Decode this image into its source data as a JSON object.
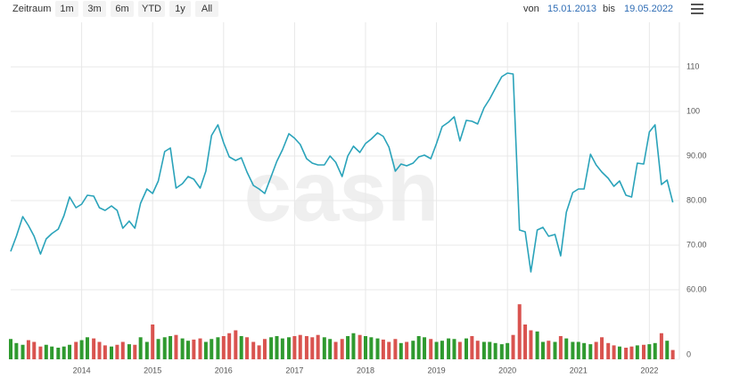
{
  "toolbar": {
    "label": "Zeitraum",
    "buttons": [
      "1m",
      "3m",
      "6m",
      "YTD",
      "1y",
      "All"
    ],
    "from_label": "von",
    "from": "15.01.2013",
    "to_label": "bis",
    "to": "19.05.2022"
  },
  "chart_data": {
    "type": "line",
    "watermark": "cash",
    "grid": true,
    "xlim": [
      2013,
      2022.4
    ],
    "xticks": [
      2014,
      2015,
      2016,
      2017,
      2018,
      2019,
      2020,
      2021,
      2022
    ],
    "ylim": [
      59,
      119
    ],
    "yticks": [
      {
        "value": 60,
        "label": "60.00"
      },
      {
        "value": 70,
        "label": "70.00"
      },
      {
        "value": 80,
        "label": "80.00"
      },
      {
        "value": 90,
        "label": "90.00"
      },
      100,
      110
    ],
    "y2lim": [
      0,
      100
    ],
    "y2ticks": [
      0
    ],
    "x": [
      2013,
      2013.08,
      2013.17,
      2013.25,
      2013.33,
      2013.42,
      2013.5,
      2013.58,
      2013.67,
      2013.75,
      2013.83,
      2013.92,
      2014,
      2014.08,
      2014.17,
      2014.25,
      2014.33,
      2014.42,
      2014.5,
      2014.58,
      2014.67,
      2014.75,
      2014.83,
      2014.92,
      2015,
      2015.08,
      2015.17,
      2015.25,
      2015.33,
      2015.42,
      2015.5,
      2015.58,
      2015.67,
      2015.75,
      2015.83,
      2015.92,
      2016,
      2016.08,
      2016.17,
      2016.25,
      2016.33,
      2016.42,
      2016.5,
      2016.58,
      2016.67,
      2016.75,
      2016.83,
      2016.92,
      2017,
      2017.08,
      2017.17,
      2017.25,
      2017.33,
      2017.42,
      2017.5,
      2017.58,
      2017.67,
      2017.75,
      2017.83,
      2017.92,
      2018,
      2018.08,
      2018.17,
      2018.25,
      2018.33,
      2018.42,
      2018.5,
      2018.58,
      2018.67,
      2018.75,
      2018.83,
      2018.92,
      2019,
      2019.08,
      2019.17,
      2019.25,
      2019.33,
      2019.42,
      2019.5,
      2019.58,
      2019.67,
      2019.75,
      2019.83,
      2019.92,
      2020,
      2020.08,
      2020.17,
      2020.25,
      2020.33,
      2020.42,
      2020.5,
      2020.58,
      2020.67,
      2020.75,
      2020.83,
      2020.92,
      2021,
      2021.08,
      2021.17,
      2021.25,
      2021.33,
      2021.42,
      2021.5,
      2021.58,
      2021.67,
      2021.75,
      2021.83,
      2021.92,
      2022,
      2022.08,
      2022.17,
      2022.25,
      2022.33
    ],
    "series": [
      {
        "color": "#2aa3ba",
        "values": [
          68.6,
          72,
          76.4,
          74.4,
          72,
          68,
          71.4,
          72.6,
          73.6,
          76.6,
          80.8,
          78.4,
          79.2,
          81.2,
          81,
          78.4,
          77.8,
          78.8,
          77.8,
          73.8,
          75.4,
          73.8,
          79.4,
          82.6,
          81.6,
          84.4,
          91,
          91.8,
          82.8,
          83.8,
          85.4,
          84.8,
          82.8,
          86.6,
          94.6,
          97,
          93,
          89.8,
          89,
          89.6,
          86.4,
          83.4,
          82.6,
          81.6,
          85.4,
          88.8,
          91.4,
          95,
          94,
          92.6,
          89.4,
          88.4,
          88,
          88,
          90,
          88.6,
          85.4,
          90,
          92.2,
          90.8,
          92.8,
          93.8,
          95.2,
          94.4,
          92,
          86.6,
          88.2,
          87.8,
          88.4,
          89.8,
          90.2,
          89.4,
          92.8,
          96.6,
          97.6,
          98.8,
          93.4,
          98,
          97.8,
          97.2,
          100.8,
          102.8,
          105.2,
          107.8,
          108.6,
          108.4,
          73.4,
          73,
          64,
          73.4,
          74,
          72,
          72.4,
          67.6,
          77.4,
          81.8,
          82.6,
          82.6,
          90.4,
          88,
          86.4,
          85,
          83.2,
          84.4,
          81.2,
          80.8,
          88.4,
          88.2,
          95.4,
          97,
          83.6,
          84.6,
          79.6
        ]
      },
      {
        "type": "bar",
        "axis": "y2",
        "up_color": "#2f9a2f",
        "down_color": "#d9534f",
        "values": [
          35,
          28,
          25,
          33,
          30,
          22,
          25,
          22,
          20,
          22,
          25,
          30,
          33,
          38,
          36,
          30,
          24,
          22,
          25,
          30,
          26,
          25,
          38,
          30,
          60,
          35,
          38,
          40,
          42,
          36,
          32,
          34,
          36,
          30,
          35,
          38,
          40,
          45,
          50,
          40,
          38,
          30,
          24,
          35,
          38,
          40,
          36,
          38,
          40,
          42,
          40,
          38,
          42,
          38,
          35,
          30,
          35,
          40,
          45,
          42,
          40,
          38,
          36,
          34,
          30,
          35,
          28,
          30,
          32,
          40,
          38,
          35,
          30,
          32,
          36,
          35,
          30,
          36,
          40,
          32,
          30,
          30,
          28,
          26,
          28,
          42,
          95,
          60,
          50,
          48,
          30,
          32,
          30,
          40,
          36,
          30,
          30,
          28,
          26,
          30,
          38,
          28,
          24,
          22,
          20,
          22,
          24,
          25,
          26,
          28,
          45,
          32,
          16
        ]
      }
    ]
  }
}
